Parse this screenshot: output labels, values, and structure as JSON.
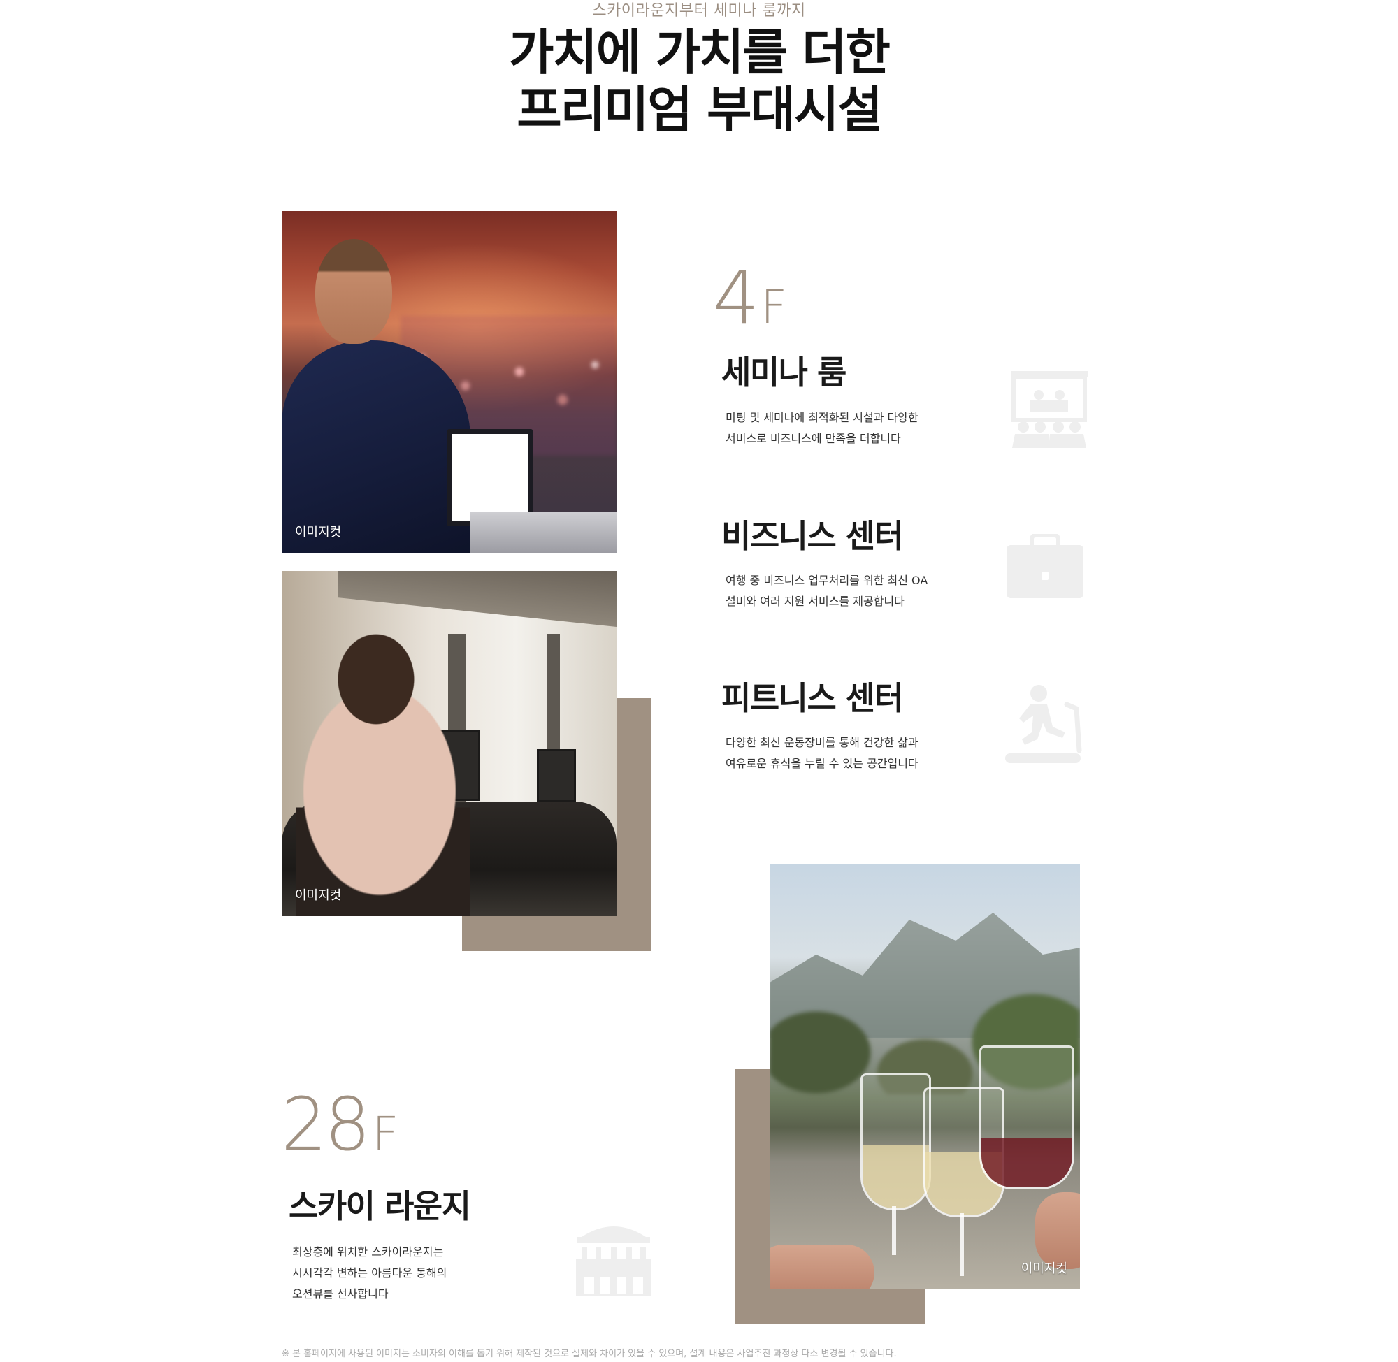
{
  "header": {
    "eyebrow": "스카이라운지부터 세미나 룸까지",
    "headline_line1": "가치에 가치를 더한",
    "headline_line2": "프리미엄 부대시설"
  },
  "photos": {
    "seminar_caption": "이미지컷",
    "fitness_caption": "이미지컷",
    "lounge_caption": "이미지컷"
  },
  "floor4": {
    "number": "4",
    "unit": "F",
    "features": [
      {
        "title": "세미나 룸",
        "desc_line1": "미팅 및 세미나에 최적화된 시설과 다양한",
        "desc_line2": "서비스로 비즈니스에 만족을 더합니다",
        "icon": "seminar-room-icon"
      },
      {
        "title": "비즈니스 센터",
        "desc_line1": "여행 중 비즈니스 업무처리를 위한 최신 OA",
        "desc_line2": "설비와 여러 지원 서비스를 제공합니다",
        "icon": "briefcase-icon"
      },
      {
        "title": "피트니스 센터",
        "desc_line1": "다양한 최신 운동장비를 통해 건강한 삶과",
        "desc_line2": "여유로운 휴식을 누릴 수 있는 공간입니다",
        "icon": "treadmill-icon"
      }
    ]
  },
  "floor28": {
    "number": "28",
    "unit": "F",
    "title": "스카이 라운지",
    "desc_line1": "최상층에 위치한 스카이라운지는",
    "desc_line2": "시시각각 변하는 아름다운 동해의",
    "desc_line3": "오션뷰를 선사합니다",
    "icon": "pavilion-icon"
  },
  "footnote": "※ 본 홈페이지에 사용된 이미지는 소비자의 이해를 돕기 위해 제작된 것으로 실제와 차이가 있을 수 있으며, 설계 내용은 사업주진 과정상 다소 변경될 수 있습니다.",
  "colors": {
    "accent": "#a09182",
    "icon_gray": "#eeeeee",
    "title": "#1a1a1a"
  }
}
